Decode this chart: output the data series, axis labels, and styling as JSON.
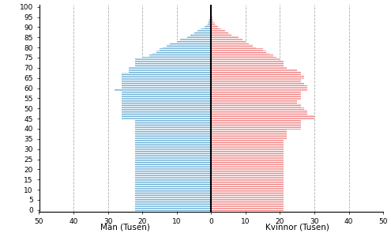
{
  "ages": [
    0,
    1,
    2,
    3,
    4,
    5,
    6,
    7,
    8,
    9,
    10,
    11,
    12,
    13,
    14,
    15,
    16,
    17,
    18,
    19,
    20,
    21,
    22,
    23,
    24,
    25,
    26,
    27,
    28,
    29,
    30,
    31,
    32,
    33,
    34,
    35,
    36,
    37,
    38,
    39,
    40,
    41,
    42,
    43,
    44,
    45,
    46,
    47,
    48,
    49,
    50,
    51,
    52,
    53,
    54,
    55,
    56,
    57,
    58,
    59,
    60,
    61,
    62,
    63,
    64,
    65,
    66,
    67,
    68,
    69,
    70,
    71,
    72,
    73,
    74,
    75,
    76,
    77,
    78,
    79,
    80,
    81,
    82,
    83,
    84,
    85,
    86,
    87,
    88,
    89,
    90,
    91,
    92,
    93,
    94,
    95,
    96,
    97,
    98,
    99,
    100
  ],
  "male": [
    22,
    22,
    22,
    22,
    22,
    22,
    22,
    22,
    22,
    22,
    22,
    22,
    22,
    22,
    22,
    22,
    22,
    22,
    22,
    22,
    22,
    22,
    22,
    22,
    22,
    22,
    22,
    22,
    22,
    22,
    22,
    22,
    22,
    22,
    22,
    22,
    22,
    22,
    22,
    22,
    22,
    22,
    22,
    22,
    22,
    26,
    26,
    26,
    26,
    26,
    26,
    26,
    26,
    26,
    26,
    26,
    26,
    26,
    26,
    28,
    26,
    26,
    26,
    26,
    26,
    26,
    26,
    26,
    24,
    24,
    24,
    22,
    22,
    22,
    22,
    20,
    18,
    17,
    16,
    15,
    14,
    13,
    12,
    10,
    9,
    7,
    6,
    5,
    4,
    3,
    2,
    1.5,
    1,
    0.8,
    0.5,
    0.3,
    0.2,
    0.1,
    0.1,
    0.05,
    0.02
  ],
  "female": [
    21,
    21,
    21,
    21,
    21,
    21,
    21,
    21,
    21,
    21,
    21,
    21,
    21,
    21,
    21,
    21,
    21,
    21,
    21,
    21,
    21,
    21,
    21,
    21,
    21,
    21,
    21,
    21,
    21,
    21,
    21,
    21,
    21,
    21,
    21,
    22,
    22,
    22,
    22,
    22,
    26,
    26,
    26,
    26,
    26,
    30,
    30,
    28,
    28,
    28,
    27,
    26,
    26,
    25,
    25,
    26,
    26,
    26,
    26,
    28,
    28,
    28,
    27,
    26,
    26,
    27,
    27,
    26,
    26,
    25,
    22,
    21,
    21,
    21,
    20,
    19,
    18,
    17,
    16,
    15,
    13,
    12,
    11,
    10,
    9,
    8,
    6,
    5,
    4,
    3,
    2,
    1.5,
    1,
    0.7,
    0.4,
    0.3,
    0.2,
    0.1,
    0.05,
    0.02,
    0.01
  ],
  "male_color": "#6aaed6",
  "female_color": "#f08080",
  "xlim": 50,
  "ytick_vals": [
    0,
    5,
    10,
    15,
    20,
    25,
    30,
    35,
    40,
    45,
    50,
    55,
    60,
    65,
    70,
    75,
    80,
    85,
    90,
    95,
    100
  ],
  "xtick_vals": [
    -50,
    -40,
    -30,
    -20,
    -10,
    0,
    10,
    20,
    30,
    40,
    50
  ],
  "xlabel_male": "Män (Tusen)",
  "xlabel_female": "Kvinnor (Tusen)",
  "bg_color": "#ffffff",
  "grid_color": "#999999",
  "center_line_color": "#000000",
  "bar_height": 1.0
}
